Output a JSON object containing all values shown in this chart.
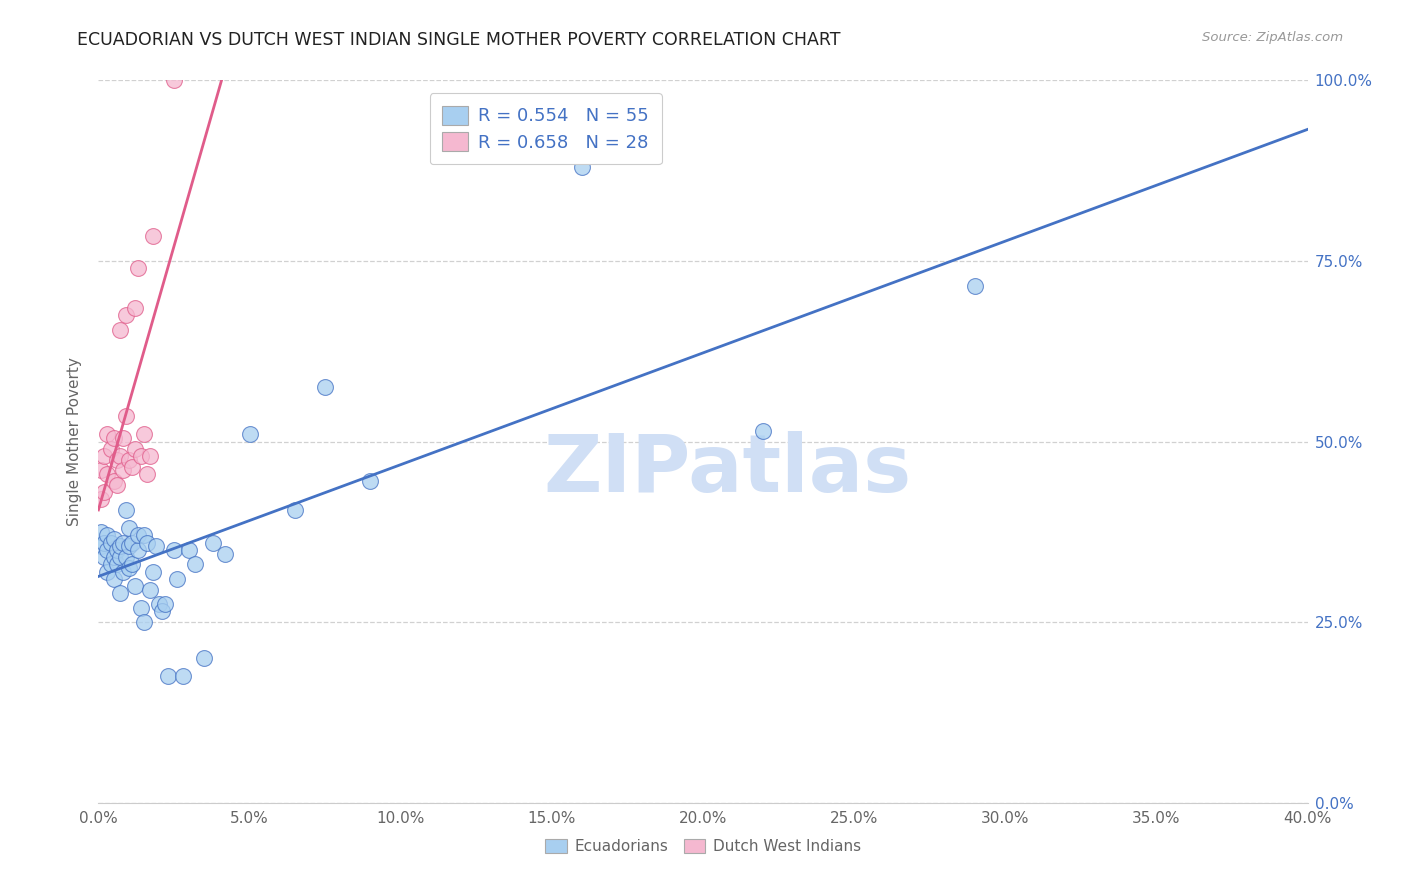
{
  "title": "ECUADORIAN VS DUTCH WEST INDIAN SINGLE MOTHER POVERTY CORRELATION CHART",
  "source": "Source: ZipAtlas.com",
  "ylabel_label": "Single Mother Poverty",
  "legend_label1": "Ecuadorians",
  "legend_label2": "Dutch West Indians",
  "r1": 0.554,
  "n1": 55,
  "r2": 0.658,
  "n2": 28,
  "color1": "#A8CFF0",
  "color2": "#F5B8D0",
  "trendline_color1": "#4472C4",
  "trendline_color2": "#E05C8A",
  "watermark": "ZIPatlas",
  "watermark_color": "#D0DFF5",
  "background_color": "#FFFFFF",
  "ecuadorians_x": [
    0.001,
    0.001,
    0.002,
    0.002,
    0.003,
    0.003,
    0.003,
    0.004,
    0.004,
    0.005,
    0.005,
    0.005,
    0.006,
    0.006,
    0.007,
    0.007,
    0.007,
    0.008,
    0.008,
    0.009,
    0.009,
    0.01,
    0.01,
    0.01,
    0.011,
    0.011,
    0.012,
    0.013,
    0.013,
    0.014,
    0.015,
    0.015,
    0.016,
    0.017,
    0.018,
    0.019,
    0.02,
    0.021,
    0.022,
    0.023,
    0.025,
    0.026,
    0.028,
    0.03,
    0.032,
    0.035,
    0.038,
    0.042,
    0.05,
    0.065,
    0.075,
    0.09,
    0.16,
    0.22,
    0.29
  ],
  "ecuadorians_y": [
    0.355,
    0.375,
    0.34,
    0.36,
    0.32,
    0.35,
    0.37,
    0.33,
    0.36,
    0.31,
    0.34,
    0.365,
    0.33,
    0.35,
    0.29,
    0.34,
    0.355,
    0.32,
    0.36,
    0.34,
    0.405,
    0.325,
    0.355,
    0.38,
    0.33,
    0.36,
    0.3,
    0.35,
    0.37,
    0.27,
    0.25,
    0.37,
    0.36,
    0.295,
    0.32,
    0.355,
    0.275,
    0.265,
    0.275,
    0.175,
    0.35,
    0.31,
    0.175,
    0.35,
    0.33,
    0.2,
    0.36,
    0.345,
    0.51,
    0.405,
    0.575,
    0.445,
    0.88,
    0.515,
    0.715
  ],
  "dutch_x": [
    0.001,
    0.001,
    0.002,
    0.002,
    0.003,
    0.003,
    0.004,
    0.005,
    0.005,
    0.006,
    0.006,
    0.007,
    0.007,
    0.008,
    0.008,
    0.009,
    0.009,
    0.01,
    0.011,
    0.012,
    0.012,
    0.013,
    0.014,
    0.015,
    0.016,
    0.017,
    0.018,
    0.025
  ],
  "dutch_y": [
    0.42,
    0.46,
    0.43,
    0.48,
    0.455,
    0.51,
    0.49,
    0.445,
    0.505,
    0.44,
    0.475,
    0.48,
    0.655,
    0.46,
    0.505,
    0.535,
    0.675,
    0.475,
    0.465,
    0.49,
    0.685,
    0.74,
    0.48,
    0.51,
    0.455,
    0.48,
    0.785,
    1.0
  ],
  "xticks": [
    0.0,
    0.05,
    0.1,
    0.15,
    0.2,
    0.25,
    0.3,
    0.35,
    0.4
  ],
  "xticklabels": [
    "0.0%",
    "5.0%",
    "10.0%",
    "15.0%",
    "20.0%",
    "25.0%",
    "30.0%",
    "35.0%",
    "40.0%"
  ],
  "yticks": [
    0.0,
    0.25,
    0.5,
    0.75,
    1.0
  ],
  "yticklabels_right": [
    "0.0%",
    "25.0%",
    "50.0%",
    "75.0%",
    "100.0%"
  ],
  "xlim": [
    0.0,
    0.4
  ],
  "ylim": [
    0.0,
    1.0
  ],
  "trendline_x_start": 0.0,
  "trendline_x_end": 0.4
}
